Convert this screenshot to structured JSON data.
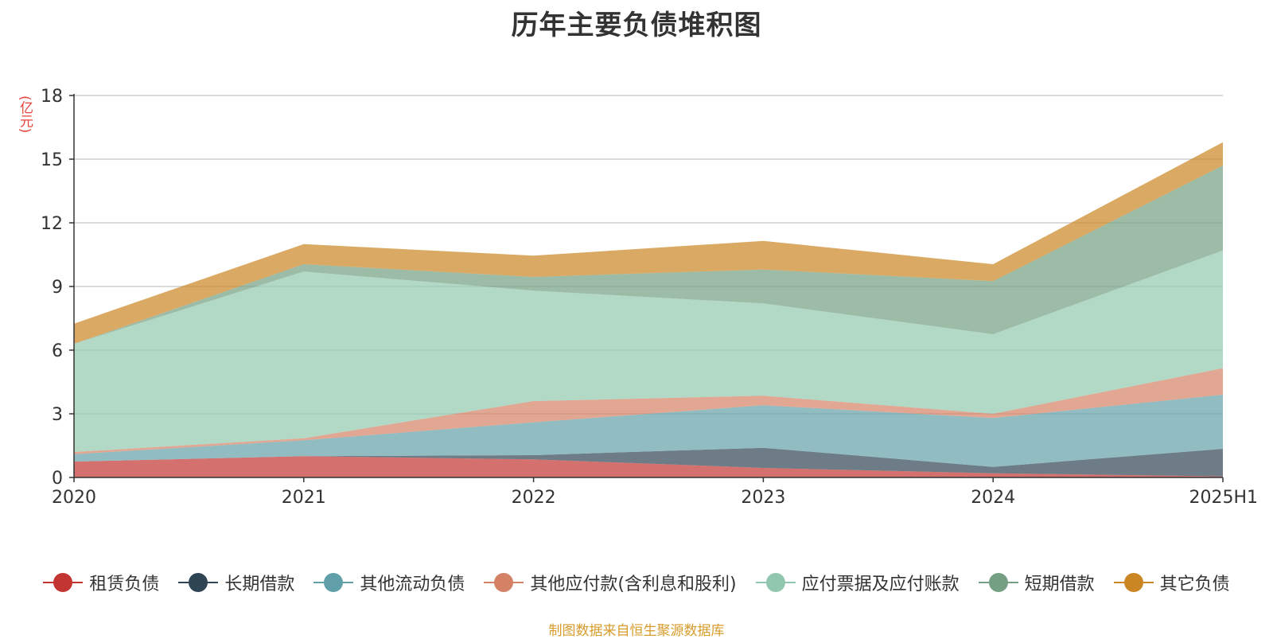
{
  "chart_data": {
    "type": "area",
    "stacked": true,
    "title": "历年主要负债堆积图",
    "ylabel": "(亿元)",
    "categories": [
      "2020",
      "2021",
      "2022",
      "2023",
      "2024",
      "2025H1"
    ],
    "y_ticks": [
      "0",
      "3",
      "6",
      "9",
      "12",
      "15",
      "18"
    ],
    "ylim": [
      0,
      18
    ],
    "grid": true,
    "legend_position": "bottom",
    "series": [
      {
        "name": "租赁负债",
        "color": "#c23531",
        "values": [
          0.75,
          1.0,
          0.85,
          0.45,
          0.2,
          0.05
        ]
      },
      {
        "name": "长期借款",
        "color": "#2f4554",
        "values": [
          0.0,
          0.0,
          0.2,
          0.95,
          0.3,
          1.3
        ]
      },
      {
        "name": "其他流动负债",
        "color": "#61a0a8",
        "values": [
          0.35,
          0.75,
          1.55,
          2.0,
          2.3,
          2.55
        ]
      },
      {
        "name": "其他应付款(含利息和股利)",
        "color": "#d48265",
        "values": [
          0.1,
          0.1,
          1.0,
          0.45,
          0.2,
          1.25
        ]
      },
      {
        "name": "应付票据及应付账款",
        "color": "#91c7ae",
        "values": [
          5.1,
          7.85,
          5.2,
          4.35,
          3.75,
          5.55
        ]
      },
      {
        "name": "短期借款",
        "color": "#749f83",
        "values": [
          0.0,
          0.35,
          0.65,
          1.6,
          2.5,
          4.0
        ]
      },
      {
        "name": "其它负债",
        "color": "#ca8622",
        "values": [
          0.95,
          0.95,
          1.0,
          1.35,
          0.8,
          1.1
        ]
      }
    ]
  },
  "source_note": "制图数据来自恒生聚源数据库"
}
